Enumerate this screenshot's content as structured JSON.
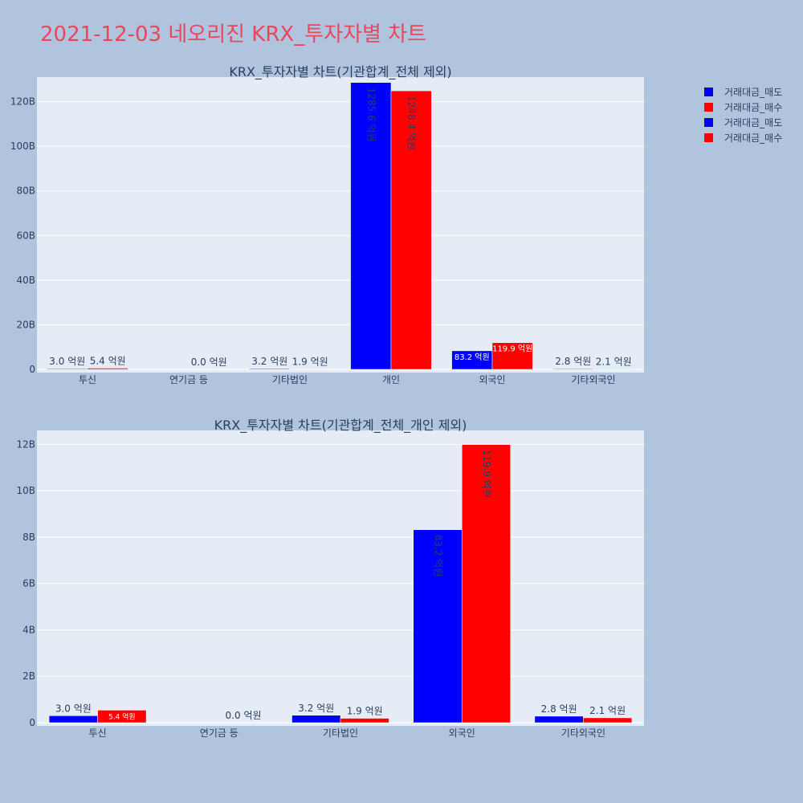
{
  "page_title": "2021-12-03 네오리진 KRX_투자자별 차트",
  "colors": {
    "sell": "#0000ff",
    "buy": "#ff0000",
    "plot_bg": "#e5ecf6",
    "page_bg": "#b0c4de",
    "title": "#e8475e"
  },
  "legend": [
    {
      "name": "거래대금_매도",
      "color": "#0000ff"
    },
    {
      "name": "거래대금_매수",
      "color": "#ff0000"
    },
    {
      "name": "거래대금_매도",
      "color": "#0000ff"
    },
    {
      "name": "거래대금_매수",
      "color": "#ff0000"
    }
  ],
  "chart_data": [
    {
      "type": "bar",
      "title": "KRX_투자자별 차트(기관합계_전체 제외)",
      "categories": [
        "투신",
        "연기금 등",
        "기타법인",
        "개인",
        "외국인",
        "기타외국인"
      ],
      "ylim": [
        0,
        131
      ],
      "yticks": [
        0,
        20,
        40,
        60,
        80,
        100,
        120
      ],
      "ytick_labels": [
        "0",
        "20B",
        "40B",
        "60B",
        "80B",
        "100B",
        "120B"
      ],
      "series": [
        {
          "name": "거래대금_매도",
          "color": "#0000ff",
          "values": [
            0.3,
            0.0,
            0.32,
            128.56,
            8.32,
            0.28
          ],
          "labels": [
            "3.0 억원",
            "",
            "3.2 억원",
            "1285.6 억원",
            "83.2 억원",
            "2.8 억원"
          ]
        },
        {
          "name": "거래대금_매수",
          "color": "#ff0000",
          "values": [
            0.54,
            0.0,
            0.19,
            124.84,
            11.99,
            0.21
          ],
          "labels": [
            "5.4 억원",
            "0.0 억원",
            "1.9 억원",
            "1248.4 억원",
            "119.9 억원",
            "2.1 억원"
          ]
        }
      ]
    },
    {
      "type": "bar",
      "title": "KRX_투자자별 차트(기관합계_전체_개인 제외)",
      "categories": [
        "투신",
        "연기금 등",
        "기타법인",
        "외국인",
        "기타외국인"
      ],
      "ylim": [
        0,
        12.6
      ],
      "yticks": [
        0,
        2,
        4,
        6,
        8,
        10,
        12
      ],
      "ytick_labels": [
        "0",
        "2B",
        "4B",
        "6B",
        "8B",
        "10B",
        "12B"
      ],
      "series": [
        {
          "name": "거래대금_매도",
          "color": "#0000ff",
          "values": [
            0.3,
            0.0,
            0.32,
            8.32,
            0.28
          ],
          "labels": [
            "3.0 억원",
            "",
            "3.2 억원",
            "83.2 억원",
            "2.8 억원"
          ]
        },
        {
          "name": "거래대금_매수",
          "color": "#ff0000",
          "values": [
            0.54,
            0.0,
            0.19,
            11.99,
            0.21
          ],
          "labels": [
            "5.4 억원",
            "0.0 억원",
            "1.9 억원",
            "119.9 억원",
            "2.1 억원"
          ]
        }
      ]
    }
  ]
}
